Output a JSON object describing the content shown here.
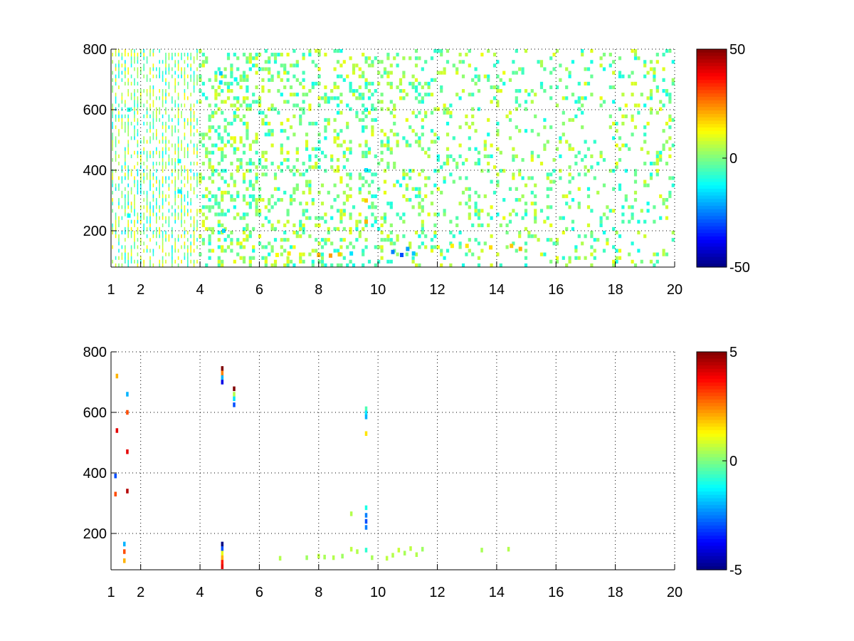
{
  "chart_data": [
    {
      "type": "heatmap",
      "x_ticks": [
        1,
        2,
        4,
        6,
        8,
        10,
        12,
        14,
        16,
        18,
        20
      ],
      "y_ticks": [
        200,
        400,
        600,
        800
      ],
      "xlim": [
        1,
        20
      ],
      "ylim": [
        80,
        800
      ],
      "grid": true,
      "colorbar": {
        "colormap": "jet",
        "range": [
          -50,
          50
        ],
        "tick_labels": [
          "50",
          "0",
          "-50"
        ]
      },
      "cells": [
        {
          "x": 4.7,
          "y": 720,
          "v": -18
        },
        {
          "x": 4.7,
          "y": 690,
          "v": -15
        },
        {
          "x": 5.2,
          "y": 700,
          "v": -12
        },
        {
          "x": 3.3,
          "y": 330,
          "v": -14
        },
        {
          "x": 3.3,
          "y": 430,
          "v": -12
        },
        {
          "x": 4.8,
          "y": 200,
          "v": -16
        },
        {
          "x": 1.6,
          "y": 600,
          "v": -10
        },
        {
          "x": 1.6,
          "y": 250,
          "v": -12
        },
        {
          "x": 9.6,
          "y": 400,
          "v": -15
        },
        {
          "x": 9.6,
          "y": 600,
          "v": -10
        },
        {
          "x": 9.6,
          "y": 300,
          "v": 18
        },
        {
          "x": 9.6,
          "y": 230,
          "v": 20
        },
        {
          "x": 10.5,
          "y": 130,
          "v": -25
        },
        {
          "x": 10.8,
          "y": 120,
          "v": -30
        },
        {
          "x": 11.0,
          "y": 140,
          "v": -22
        },
        {
          "x": 11.2,
          "y": 125,
          "v": -18
        },
        {
          "x": 9.1,
          "y": 125,
          "v": -15
        },
        {
          "x": 8.0,
          "y": 120,
          "v": 20
        },
        {
          "x": 8.4,
          "y": 118,
          "v": 22
        },
        {
          "x": 8.7,
          "y": 122,
          "v": 18
        },
        {
          "x": 7.0,
          "y": 125,
          "v": 15
        },
        {
          "x": 6.6,
          "y": 120,
          "v": 12
        },
        {
          "x": 13.0,
          "y": 150,
          "v": 15
        },
        {
          "x": 13.8,
          "y": 145,
          "v": 16
        },
        {
          "x": 14.5,
          "y": 150,
          "v": 18
        },
        {
          "x": 14.8,
          "y": 140,
          "v": 20
        },
        {
          "x": 12.5,
          "y": 150,
          "v": 14
        }
      ]
    },
    {
      "type": "heatmap",
      "x_ticks": [
        1,
        2,
        4,
        6,
        8,
        10,
        12,
        14,
        16,
        18,
        20
      ],
      "y_ticks": [
        200,
        400,
        600,
        800
      ],
      "xlim": [
        1,
        20
      ],
      "ylim": [
        80,
        800
      ],
      "grid": true,
      "colorbar": {
        "colormap": "jet",
        "range": [
          -5,
          5
        ],
        "tick_labels": [
          "5",
          "0",
          "-5"
        ]
      },
      "cells": [
        {
          "x": 4.75,
          "y": 745,
          "v": 5
        },
        {
          "x": 4.75,
          "y": 730,
          "v": 2.5
        },
        {
          "x": 4.75,
          "y": 715,
          "v": -2
        },
        {
          "x": 4.75,
          "y": 700,
          "v": -4
        },
        {
          "x": 5.15,
          "y": 678,
          "v": 5
        },
        {
          "x": 5.15,
          "y": 660,
          "v": 0.5
        },
        {
          "x": 5.15,
          "y": 645,
          "v": -1.5
        },
        {
          "x": 5.15,
          "y": 625,
          "v": -3
        },
        {
          "x": 9.6,
          "y": 612,
          "v": -0.5
        },
        {
          "x": 9.6,
          "y": 598,
          "v": -1.5
        },
        {
          "x": 9.6,
          "y": 585,
          "v": -2
        },
        {
          "x": 9.6,
          "y": 530,
          "v": 1.5
        },
        {
          "x": 9.6,
          "y": 285,
          "v": -1
        },
        {
          "x": 9.6,
          "y": 260,
          "v": -2.5
        },
        {
          "x": 9.6,
          "y": 240,
          "v": -3
        },
        {
          "x": 9.6,
          "y": 220,
          "v": -2.5
        },
        {
          "x": 9.1,
          "y": 265,
          "v": 0.5
        },
        {
          "x": 4.75,
          "y": 165,
          "v": -5
        },
        {
          "x": 4.75,
          "y": 150,
          "v": -3
        },
        {
          "x": 4.75,
          "y": 135,
          "v": 1
        },
        {
          "x": 4.75,
          "y": 120,
          "v": 2
        },
        {
          "x": 4.75,
          "y": 105,
          "v": 3.5
        },
        {
          "x": 4.75,
          "y": 90,
          "v": 4
        },
        {
          "x": 1.45,
          "y": 165,
          "v": -2
        },
        {
          "x": 1.45,
          "y": 140,
          "v": 3
        },
        {
          "x": 1.45,
          "y": 110,
          "v": 2
        },
        {
          "x": 1.55,
          "y": 600,
          "v": 3
        },
        {
          "x": 1.55,
          "y": 660,
          "v": -2
        },
        {
          "x": 1.55,
          "y": 470,
          "v": 4
        },
        {
          "x": 1.55,
          "y": 340,
          "v": 4.5
        },
        {
          "x": 1.2,
          "y": 720,
          "v": 2
        },
        {
          "x": 1.2,
          "y": 540,
          "v": 4
        },
        {
          "x": 1.15,
          "y": 390,
          "v": -3
        },
        {
          "x": 1.15,
          "y": 330,
          "v": 3
        },
        {
          "x": 6.7,
          "y": 118,
          "v": 0.5
        },
        {
          "x": 7.6,
          "y": 120,
          "v": 0.3
        },
        {
          "x": 8.0,
          "y": 125,
          "v": 0.6
        },
        {
          "x": 8.2,
          "y": 122,
          "v": 0.4
        },
        {
          "x": 8.5,
          "y": 120,
          "v": 0.5
        },
        {
          "x": 8.8,
          "y": 125,
          "v": 0.3
        },
        {
          "x": 9.1,
          "y": 148,
          "v": 0.6
        },
        {
          "x": 9.3,
          "y": 140,
          "v": 0.5
        },
        {
          "x": 9.6,
          "y": 145,
          "v": -0.8
        },
        {
          "x": 9.8,
          "y": 120,
          "v": 0.4
        },
        {
          "x": 10.3,
          "y": 118,
          "v": 0.6
        },
        {
          "x": 10.5,
          "y": 128,
          "v": 0.5
        },
        {
          "x": 10.7,
          "y": 145,
          "v": 0.7
        },
        {
          "x": 10.9,
          "y": 135,
          "v": 0.4
        },
        {
          "x": 11.1,
          "y": 150,
          "v": 0.6
        },
        {
          "x": 11.3,
          "y": 130,
          "v": 0.5
        },
        {
          "x": 11.5,
          "y": 148,
          "v": 0.3
        },
        {
          "x": 13.5,
          "y": 145,
          "v": 0.4
        },
        {
          "x": 14.4,
          "y": 148,
          "v": 0.5
        }
      ]
    }
  ]
}
